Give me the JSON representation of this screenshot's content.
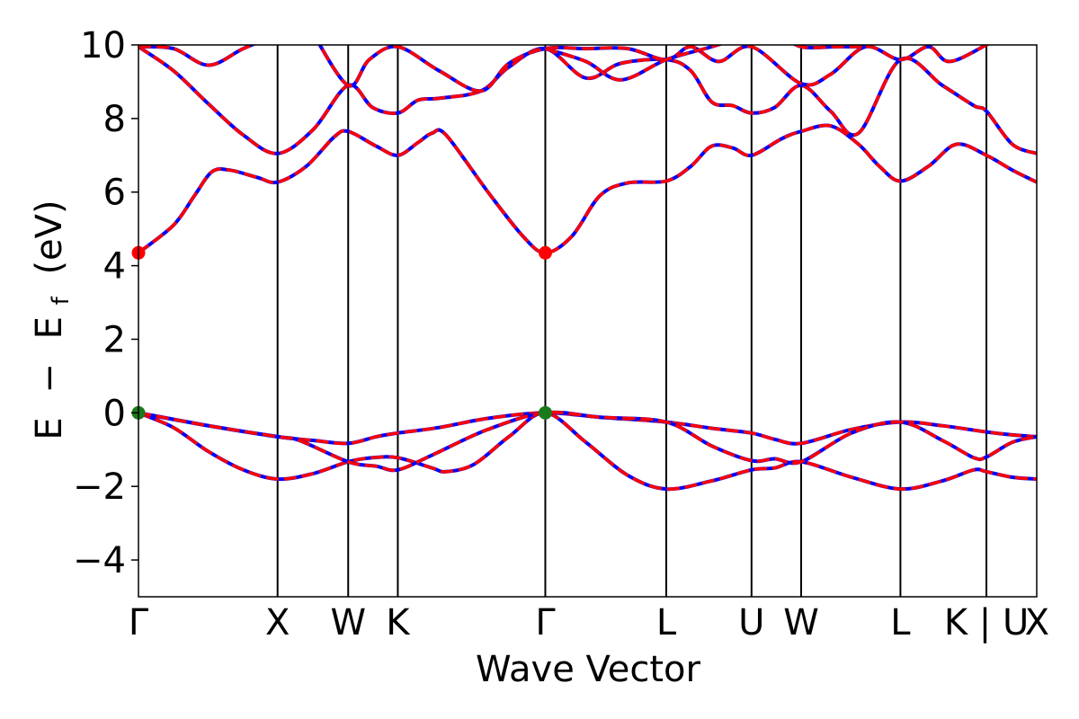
{
  "chart_data": {
    "type": "line",
    "title": "",
    "xlabel": "Wave Vector",
    "ylabel_parts": [
      "E",
      "−",
      "E",
      "f",
      "(eV)"
    ],
    "ylim": [
      -5,
      10
    ],
    "yticks": [
      "−4",
      "−2",
      "0",
      "2",
      "4",
      "6",
      "8",
      "10"
    ],
    "ytick_values": [
      -4,
      -2,
      0,
      2,
      4,
      6,
      8,
      10
    ],
    "xlim": [
      0,
      12.85
    ],
    "kpath": [
      {
        "label": "Γ",
        "k": 0.0
      },
      {
        "label": "X",
        "k": 1.99
      },
      {
        "label": "W",
        "k": 3.0
      },
      {
        "label": "K",
        "k": 3.71
      },
      {
        "label": "Γ",
        "k": 5.82
      },
      {
        "label": "L",
        "k": 7.55
      },
      {
        "label": "U",
        "k": 8.77
      },
      {
        "label": "W",
        "k": 9.48
      },
      {
        "label": "L",
        "k": 10.9
      },
      {
        "label": "K | U",
        "k": 12.13
      },
      {
        "label": "X",
        "k": 12.85
      }
    ],
    "series": [
      {
        "points": [
          [
            0,
            0
          ],
          [
            0.5,
            -0.4
          ],
          [
            1.0,
            -1.05
          ],
          [
            1.5,
            -1.55
          ],
          [
            1.99,
            -1.8
          ],
          [
            2.5,
            -1.65
          ],
          [
            3.0,
            -1.33
          ],
          [
            3.35,
            -1.22
          ],
          [
            3.71,
            -1.22
          ],
          [
            4.2,
            -1.5
          ],
          [
            4.4,
            -1.6
          ],
          [
            4.8,
            -1.4
          ],
          [
            5.3,
            -0.65
          ],
          [
            5.82,
            0
          ],
          [
            6.4,
            -0.8
          ],
          [
            7.0,
            -1.7
          ],
          [
            7.55,
            -2.07
          ],
          [
            8.2,
            -1.85
          ],
          [
            8.77,
            -1.55
          ],
          [
            9.1,
            -1.5
          ],
          [
            9.48,
            -1.33
          ],
          [
            10.2,
            -1.75
          ],
          [
            10.9,
            -2.07
          ],
          [
            11.5,
            -1.85
          ],
          [
            11.95,
            -1.55
          ],
          [
            12.13,
            -1.6
          ],
          [
            12.5,
            -1.75
          ],
          [
            12.85,
            -1.8
          ]
        ]
      },
      {
        "points": [
          [
            0,
            0
          ],
          [
            1.0,
            -0.35
          ],
          [
            1.99,
            -0.65
          ],
          [
            2.5,
            -0.75
          ],
          [
            3.0,
            -0.83
          ],
          [
            3.4,
            -0.65
          ],
          [
            3.71,
            -0.55
          ],
          [
            4.3,
            -0.4
          ],
          [
            5.0,
            -0.15
          ],
          [
            5.82,
            0
          ],
          [
            6.6,
            -0.12
          ],
          [
            7.55,
            -0.25
          ],
          [
            8.2,
            -0.42
          ],
          [
            8.77,
            -0.55
          ],
          [
            9.1,
            -0.72
          ],
          [
            9.48,
            -0.83
          ],
          [
            10.2,
            -0.45
          ],
          [
            10.9,
            -0.25
          ],
          [
            11.5,
            -0.35
          ],
          [
            12.13,
            -0.52
          ],
          [
            12.5,
            -0.6
          ],
          [
            12.85,
            -0.65
          ]
        ]
      },
      {
        "points": [
          [
            0,
            0
          ],
          [
            1.0,
            -0.35
          ],
          [
            1.99,
            -0.65
          ],
          [
            2.3,
            -0.75
          ],
          [
            3.0,
            -1.33
          ],
          [
            3.4,
            -1.45
          ],
          [
            3.71,
            -1.55
          ],
          [
            4.2,
            -1.15
          ],
          [
            5.0,
            -0.45
          ],
          [
            5.82,
            0
          ],
          [
            6.6,
            -0.12
          ],
          [
            7.55,
            -0.25
          ],
          [
            8.2,
            -0.9
          ],
          [
            8.77,
            -1.3
          ],
          [
            9.1,
            -1.25
          ],
          [
            9.48,
            -1.33
          ],
          [
            10.2,
            -0.55
          ],
          [
            10.9,
            -0.25
          ],
          [
            11.5,
            -0.75
          ],
          [
            11.95,
            -1.22
          ],
          [
            12.13,
            -1.2
          ],
          [
            12.5,
            -0.8
          ],
          [
            12.85,
            -0.65
          ]
        ]
      },
      {
        "points": [
          [
            0,
            4.35
          ],
          [
            0.5,
            5.1
          ],
          [
            0.8,
            5.9
          ],
          [
            1.05,
            6.55
          ],
          [
            1.3,
            6.6
          ],
          [
            1.7,
            6.4
          ],
          [
            1.99,
            6.27
          ],
          [
            2.4,
            6.7
          ],
          [
            2.8,
            7.5
          ],
          [
            3.0,
            7.65
          ],
          [
            3.4,
            7.25
          ],
          [
            3.71,
            7.0
          ],
          [
            4.0,
            7.35
          ],
          [
            4.2,
            7.6
          ],
          [
            4.4,
            7.55
          ],
          [
            5.0,
            6.0
          ],
          [
            5.5,
            4.8
          ],
          [
            5.82,
            4.35
          ],
          [
            6.2,
            4.8
          ],
          [
            6.6,
            5.9
          ],
          [
            7.0,
            6.25
          ],
          [
            7.55,
            6.3
          ],
          [
            7.9,
            6.7
          ],
          [
            8.2,
            7.25
          ],
          [
            8.5,
            7.2
          ],
          [
            8.77,
            7.0
          ],
          [
            9.2,
            7.45
          ],
          [
            9.48,
            7.65
          ],
          [
            9.9,
            7.8
          ],
          [
            10.3,
            7.3
          ],
          [
            10.6,
            6.7
          ],
          [
            10.9,
            6.3
          ],
          [
            11.3,
            6.7
          ],
          [
            11.7,
            7.3
          ],
          [
            12.13,
            7.0
          ],
          [
            12.5,
            6.6
          ],
          [
            12.85,
            6.27
          ]
        ]
      },
      {
        "points": [
          [
            0,
            9.95
          ],
          [
            0.5,
            9.3
          ],
          [
            1.0,
            8.4
          ],
          [
            1.5,
            7.55
          ],
          [
            1.99,
            7.05
          ],
          [
            2.5,
            7.7
          ],
          [
            3.0,
            8.9
          ],
          [
            3.35,
            8.3
          ],
          [
            3.71,
            8.15
          ],
          [
            4.0,
            8.5
          ],
          [
            4.3,
            8.55
          ],
          [
            4.9,
            8.75
          ],
          [
            5.3,
            9.4
          ],
          [
            5.82,
            9.9
          ],
          [
            6.4,
            9.1
          ],
          [
            6.9,
            9.5
          ],
          [
            7.55,
            9.6
          ],
          [
            7.9,
            9.3
          ],
          [
            8.2,
            8.45
          ],
          [
            8.5,
            8.35
          ],
          [
            8.77,
            8.15
          ],
          [
            9.1,
            8.3
          ],
          [
            9.48,
            8.9
          ],
          [
            9.9,
            8.2
          ],
          [
            10.3,
            7.6
          ],
          [
            10.9,
            9.6
          ],
          [
            11.5,
            8.9
          ],
          [
            11.95,
            8.35
          ],
          [
            12.13,
            8.2
          ],
          [
            12.5,
            7.3
          ],
          [
            12.85,
            7.05
          ]
        ]
      },
      {
        "points": [
          [
            0,
            9.95
          ],
          [
            0.5,
            9.9
          ],
          [
            1.0,
            9.45
          ],
          [
            1.5,
            9.9
          ],
          [
            2.0,
            10.3
          ]
        ]
      },
      {
        "points": [
          [
            2.5,
            10.3
          ],
          [
            3.0,
            8.9
          ],
          [
            3.3,
            9.6
          ],
          [
            3.71,
            9.95
          ],
          [
            4.3,
            9.3
          ],
          [
            4.9,
            8.75
          ],
          [
            5.3,
            9.5
          ],
          [
            5.82,
            9.9
          ],
          [
            6.4,
            9.9
          ],
          [
            7.0,
            9.9
          ],
          [
            7.55,
            9.6
          ],
          [
            7.9,
            9.95
          ],
          [
            8.3,
            9.55
          ],
          [
            8.77,
            9.95
          ],
          [
            9.48,
            8.95
          ],
          [
            9.9,
            9.2
          ],
          [
            10.4,
            9.95
          ],
          [
            10.9,
            9.6
          ],
          [
            11.3,
            9.95
          ],
          [
            11.6,
            9.55
          ],
          [
            12.13,
            10.0
          ],
          [
            12.4,
            10.3
          ]
        ]
      },
      {
        "points": [
          [
            5.82,
            9.9
          ],
          [
            6.4,
            9.55
          ],
          [
            6.9,
            9.05
          ],
          [
            7.55,
            9.6
          ],
          [
            8.2,
            9.95
          ],
          [
            8.6,
            10.2
          ]
        ]
      },
      {
        "points": [
          [
            9.2,
            10.3
          ],
          [
            9.48,
            9.95
          ],
          [
            10.0,
            9.95
          ],
          [
            10.4,
            9.95
          ]
        ]
      }
    ],
    "band_colors": {
      "dashed": "#0000ff",
      "solid": "#ff0000"
    },
    "markers": [
      {
        "k": 0.0,
        "e": 4.35,
        "color": "#ff0000"
      },
      {
        "k": 5.82,
        "e": 4.35,
        "color": "#ff0000"
      },
      {
        "k": 0.0,
        "e": 0.0,
        "color": "#1a7a1a"
      },
      {
        "k": 5.82,
        "e": 0.0,
        "color": "#1a7a1a"
      }
    ]
  }
}
